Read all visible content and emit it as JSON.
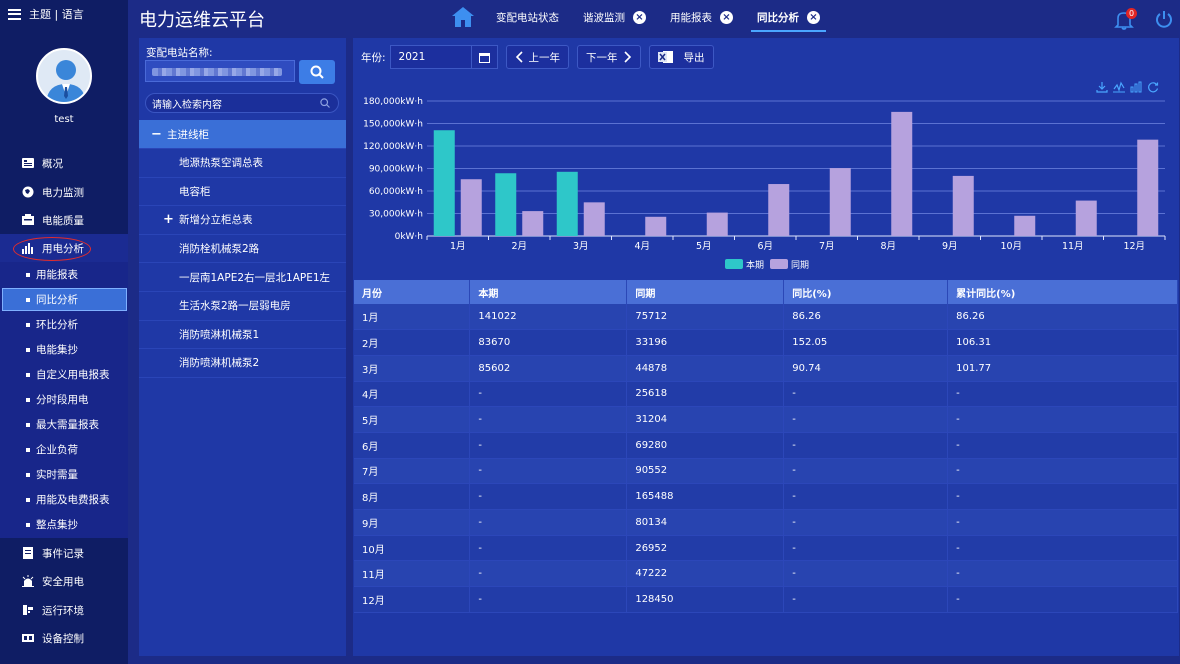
{
  "nav": {
    "theme_lang": "主题 | 语言",
    "username": "test",
    "main_items_top": [
      "概况",
      "电力监测",
      "电能质量"
    ],
    "active_main": "用电分析",
    "sub_items": [
      "用能报表",
      "同比分析",
      "环比分析",
      "电能集抄",
      "自定义用电报表",
      "分时段用电",
      "最大需量报表",
      "企业负荷",
      "实时需量",
      "用能及电费报表",
      "整点集抄"
    ],
    "active_sub": "同比分析",
    "main_items_bottom": [
      "事件记录",
      "安全用电",
      "运行环境",
      "设备控制"
    ]
  },
  "header": {
    "title": "电力运维云平台",
    "tabs": [
      {
        "label": "变配电站状态",
        "closable": false,
        "active": false
      },
      {
        "label": "谐波监测",
        "closable": true,
        "active": false
      },
      {
        "label": "用能报表",
        "closable": true,
        "active": false
      },
      {
        "label": "同比分析",
        "closable": true,
        "active": true
      }
    ],
    "badge_count": "0"
  },
  "station": {
    "label": "变配电站名称:",
    "search_placeholder": "请输入检索内容",
    "tree": [
      {
        "label": "主进线柜",
        "type": "root",
        "sign": "−"
      },
      {
        "label": "地源热泵空调总表",
        "type": "child"
      },
      {
        "label": "电容柜",
        "type": "child"
      },
      {
        "label": "新增分立柜总表",
        "type": "group",
        "sign": "+"
      },
      {
        "label": "消防栓机械泵2路",
        "type": "child"
      },
      {
        "label": "一层南1APE2右一层北1APE1左",
        "type": "child"
      },
      {
        "label": "生活水泵2路一层弱电房",
        "type": "child"
      },
      {
        "label": "消防喷淋机械泵1",
        "type": "child"
      },
      {
        "label": "消防喷淋机械泵2",
        "type": "child"
      }
    ]
  },
  "toolbar": {
    "year_label": "年份:",
    "year_value": "2021",
    "prev_label": "上一年",
    "next_label": "下一年",
    "export_label": "导出"
  },
  "colors": {
    "current": "#2ec7c9",
    "previous": "#b6a2de"
  },
  "chart_data": {
    "type": "bar",
    "categories": [
      "1月",
      "2月",
      "3月",
      "4月",
      "5月",
      "6月",
      "7月",
      "8月",
      "9月",
      "10月",
      "11月",
      "12月"
    ],
    "series": [
      {
        "name": "本期",
        "values": [
          141022,
          83670,
          85602,
          null,
          null,
          null,
          null,
          null,
          null,
          null,
          null,
          null
        ]
      },
      {
        "name": "同期",
        "values": [
          75712,
          33196,
          44878,
          25618,
          31204,
          69280,
          90552,
          165488,
          80134,
          26952,
          47222,
          128450
        ]
      }
    ],
    "ylim": [
      0,
      180000
    ],
    "yticks": [
      "0kW·h",
      "30,000kW·h",
      "60,000kW·h",
      "90,000kW·h",
      "120,000kW·h",
      "150,000kW·h",
      "180,000kW·h"
    ],
    "legend": "bottom",
    "grid": true
  },
  "table": {
    "headers": [
      "月份",
      "本期",
      "同期",
      "同比(%)",
      "累计同比(%)"
    ],
    "rows": [
      [
        "1月",
        "141022",
        "75712",
        "86.26",
        "86.26"
      ],
      [
        "2月",
        "83670",
        "33196",
        "152.05",
        "106.31"
      ],
      [
        "3月",
        "85602",
        "44878",
        "90.74",
        "101.77"
      ],
      [
        "4月",
        "-",
        "25618",
        "-",
        "-"
      ],
      [
        "5月",
        "-",
        "31204",
        "-",
        "-"
      ],
      [
        "6月",
        "-",
        "69280",
        "-",
        "-"
      ],
      [
        "7月",
        "-",
        "90552",
        "-",
        "-"
      ],
      [
        "8月",
        "-",
        "165488",
        "-",
        "-"
      ],
      [
        "9月",
        "-",
        "80134",
        "-",
        "-"
      ],
      [
        "10月",
        "-",
        "26952",
        "-",
        "-"
      ],
      [
        "11月",
        "-",
        "47222",
        "-",
        "-"
      ],
      [
        "12月",
        "-",
        "128450",
        "-",
        "-"
      ]
    ]
  }
}
